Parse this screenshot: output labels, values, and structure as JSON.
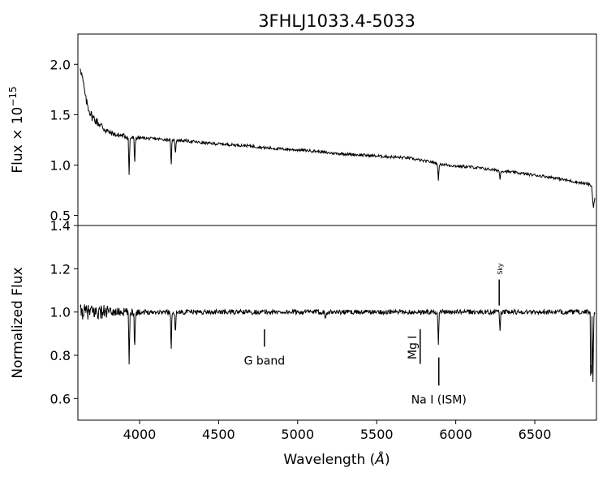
{
  "title": "3FHLJ1033.4-5033",
  "chart_data": [
    {
      "panel": "top",
      "type": "line",
      "ylabel_base": "Flux × 10",
      "ylabel_exp": "−15",
      "xlabel": "",
      "xlim": [
        3610,
        6890
      ],
      "ylim": [
        0.4,
        2.3
      ],
      "yticks": [
        0.5,
        1.0,
        1.5,
        2.0
      ],
      "ytick_labels": [
        "0.5",
        "1.0",
        "1.5",
        "2.0"
      ],
      "series": [
        {
          "x": [
            3620,
            3640,
            3660,
            3680,
            3700,
            3750,
            3800,
            3850,
            3900,
            3950,
            4000,
            4100,
            4200,
            4300,
            4400,
            4500,
            4600,
            4700,
            4800,
            4900,
            5000,
            5100,
            5200,
            5300,
            5400,
            5500,
            5600,
            5700,
            5800,
            5850,
            5900,
            6000,
            6100,
            6200,
            6300,
            6400,
            6500,
            6600,
            6700,
            6800,
            6840,
            6860,
            6870,
            6880
          ],
          "y": [
            2.02,
            1.85,
            1.65,
            1.55,
            1.48,
            1.4,
            1.33,
            1.3,
            1.29,
            1.27,
            1.27,
            1.26,
            1.25,
            1.24,
            1.22,
            1.21,
            1.2,
            1.19,
            1.17,
            1.16,
            1.15,
            1.14,
            1.12,
            1.11,
            1.1,
            1.09,
            1.08,
            1.07,
            1.04,
            1.03,
            1.01,
            0.99,
            0.98,
            0.96,
            0.94,
            0.92,
            0.9,
            0.88,
            0.85,
            0.82,
            0.81,
            0.79,
            0.58,
            0.68
          ]
        }
      ],
      "absorption_lines": [
        {
          "x": 3934,
          "depth": 0.3
        },
        {
          "x": 3969,
          "depth": 0.2
        },
        {
          "x": 4200,
          "depth": 0.22
        },
        {
          "x": 4227,
          "depth": 0.1
        },
        {
          "x": 5890,
          "depth": 0.18
        },
        {
          "x": 6280,
          "depth": 0.1
        }
      ]
    },
    {
      "panel": "bottom",
      "type": "line",
      "ylabel": "Normalized Flux",
      "xlabel_base": "Wavelength (",
      "xlabel_unit": "Å",
      "xlabel_end": ")",
      "xlim": [
        3610,
        6890
      ],
      "ylim": [
        0.5,
        1.4
      ],
      "yticks": [
        0.6,
        0.8,
        1.0,
        1.2,
        1.4
      ],
      "ytick_labels": [
        "0.6",
        "0.8",
        "1.0",
        "1.2",
        "1.4"
      ],
      "xticks": [
        4000,
        4500,
        5000,
        5500,
        6000,
        6500
      ],
      "xtick_labels": [
        "4000",
        "4500",
        "5000",
        "5500",
        "6000",
        "6500"
      ],
      "absorption_lines": [
        {
          "x": 3934,
          "depth": 0.24
        },
        {
          "x": 3969,
          "depth": 0.16
        },
        {
          "x": 4200,
          "depth": 0.19
        },
        {
          "x": 4227,
          "depth": 0.1
        },
        {
          "x": 5175,
          "depth": 0.03
        },
        {
          "x": 5890,
          "depth": 0.16
        },
        {
          "x": 6280,
          "depth": 0.09
        },
        {
          "x": 6868,
          "depth": 0.32
        }
      ],
      "annotations": [
        {
          "label": "G band",
          "line_x": 4790,
          "y1": 0.92,
          "y2": 0.84
        },
        {
          "label": "Mg I",
          "line_x": 5775,
          "y1": 0.92,
          "y2": 0.76,
          "rotated": true
        },
        {
          "label": "Na I (ISM)",
          "line_x": 5893,
          "y1": 0.79,
          "y2": 0.66
        },
        {
          "label": "Sky",
          "line_x": 6275,
          "y1": 1.15,
          "y2": 1.03,
          "rotated": true,
          "small": true
        }
      ]
    }
  ]
}
